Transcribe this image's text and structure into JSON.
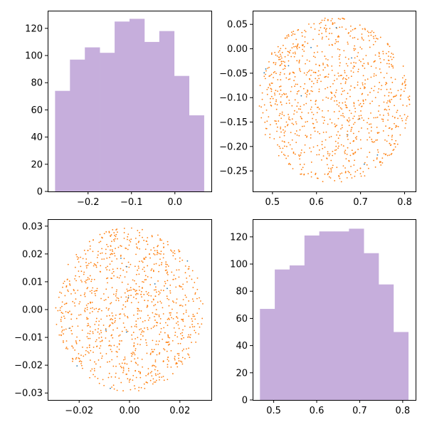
{
  "figure": {
    "background": "#ffffff"
  },
  "colors": {
    "hist": "#c6aedc",
    "scatter": "#ff7f0e",
    "scatter_alt": "#1f77b4"
  },
  "chart_data": [
    {
      "id": "top-left-hist",
      "type": "bar",
      "title": "",
      "xlabel": "",
      "ylabel": "",
      "bin_edges": [
        -0.276,
        -0.2417,
        -0.2074,
        -0.1731,
        -0.1388,
        -0.1045,
        -0.0702,
        -0.0359,
        -0.0016,
        0.0327,
        0.067
      ],
      "values": [
        74,
        97,
        106,
        102,
        125,
        127,
        110,
        118,
        85,
        56
      ],
      "xlim": [
        -0.293,
        0.084
      ],
      "ylim": [
        0,
        133
      ],
      "xticks": [
        -0.2,
        -0.1,
        0.0
      ],
      "xtick_labels": [
        "−0.2",
        "−0.1",
        "0.0"
      ],
      "yticks": [
        0,
        20,
        40,
        60,
        80,
        100,
        120
      ],
      "ytick_labels": [
        "0",
        "20",
        "40",
        "60",
        "80",
        "100",
        "120"
      ]
    },
    {
      "id": "top-right-scatter",
      "type": "scatter",
      "title": "",
      "xlabel": "",
      "ylabel": "",
      "center": [
        0.64,
        -0.105
      ],
      "radii": [
        0.172,
        0.17
      ],
      "n_points": 1000,
      "xlim": [
        0.455,
        0.825
      ],
      "ylim": [
        -0.292,
        0.078
      ],
      "xticks": [
        0.5,
        0.6,
        0.7,
        0.8
      ],
      "xtick_labels": [
        "0.5",
        "0.6",
        "0.7",
        "0.8"
      ],
      "yticks": [
        -0.25,
        -0.2,
        -0.15,
        -0.1,
        -0.05,
        0.0,
        0.05
      ],
      "ytick_labels": [
        "−0.25",
        "−0.20",
        "−0.15",
        "−0.10",
        "−0.05",
        "0.00",
        "0.05"
      ]
    },
    {
      "id": "bottom-left-scatter",
      "type": "scatter",
      "title": "",
      "xlabel": "",
      "ylabel": "",
      "center": [
        0.0,
        0.0
      ],
      "radii": [
        0.0295,
        0.0295
      ],
      "n_points": 1000,
      "xlim": [
        -0.0325,
        0.0325
      ],
      "ylim": [
        -0.0325,
        0.0325
      ],
      "xticks": [
        -0.02,
        0.0,
        0.02
      ],
      "xtick_labels": [
        "−0.02",
        "0.00",
        "0.02"
      ],
      "yticks": [
        -0.03,
        -0.02,
        -0.01,
        0.0,
        0.01,
        0.02,
        0.03
      ],
      "ytick_labels": [
        "−0.03",
        "−0.02",
        "−0.01",
        "0.00",
        "0.01",
        "0.02",
        "0.03"
      ]
    },
    {
      "id": "bottom-right-hist",
      "type": "bar",
      "title": "",
      "xlabel": "",
      "ylabel": "",
      "bin_edges": [
        0.468,
        0.5025,
        0.537,
        0.5715,
        0.606,
        0.6405,
        0.675,
        0.7095,
        0.744,
        0.7785,
        0.813
      ],
      "values": [
        67,
        96,
        99,
        121,
        124,
        124,
        126,
        108,
        85,
        50
      ],
      "xlim": [
        0.451,
        0.83
      ],
      "ylim": [
        0,
        133
      ],
      "xticks": [
        0.5,
        0.6,
        0.7,
        0.8
      ],
      "xtick_labels": [
        "0.5",
        "0.6",
        "0.7",
        "0.8"
      ],
      "yticks": [
        0,
        20,
        40,
        60,
        80,
        100,
        120
      ],
      "ytick_labels": [
        "0",
        "20",
        "40",
        "60",
        "80",
        "100",
        "120"
      ]
    }
  ]
}
